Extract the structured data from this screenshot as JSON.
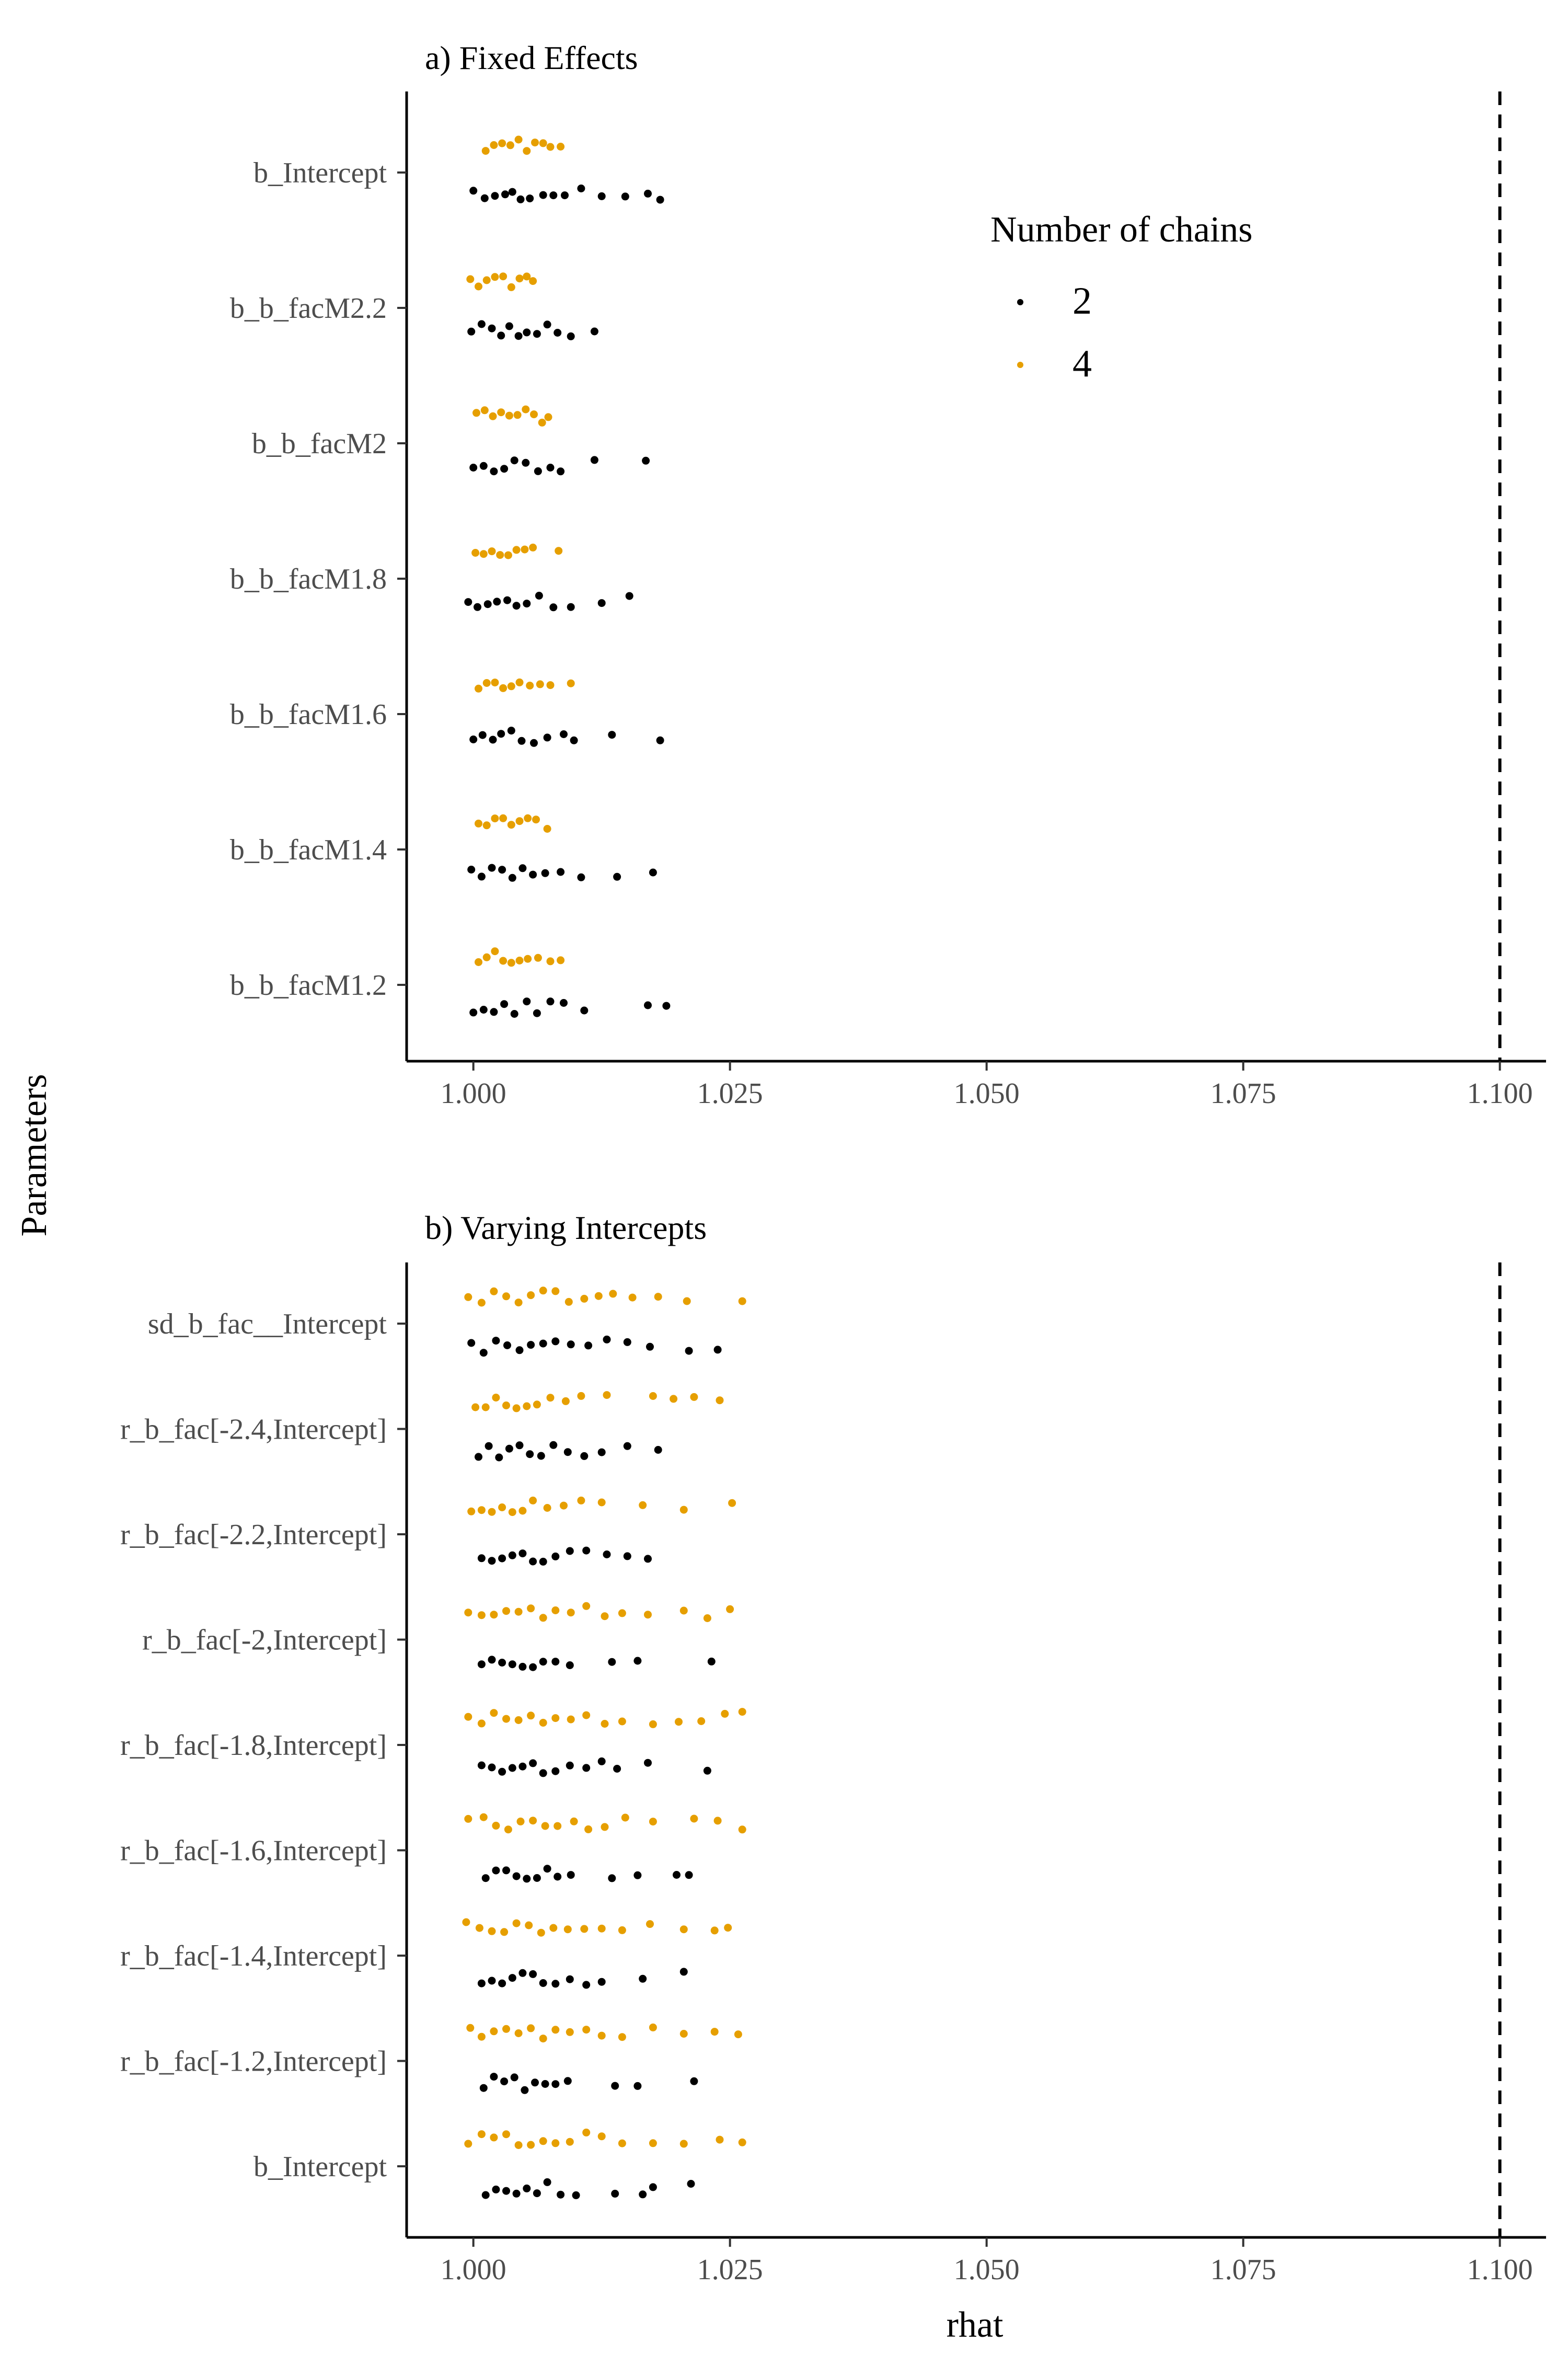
{
  "chart_data": {
    "type": "scatter",
    "xlabel": "rhat",
    "ylabel": "Parameters",
    "xlim": [
      0.9935,
      1.1045
    ],
    "x_ticks": [
      "1.000",
      "1.025",
      "1.050",
      "1.075",
      "1.100"
    ],
    "x_tick_values": [
      1.0,
      1.025,
      1.05,
      1.075,
      1.1
    ],
    "reference_line": {
      "x": 1.1,
      "style": "dashed"
    },
    "grid": false,
    "legend": {
      "title": "Number of chains",
      "placement": "inside top-right of panel a",
      "entries": [
        {
          "label": "2",
          "color": "#000000"
        },
        {
          "label": "4",
          "color": "#E69F00"
        }
      ]
    },
    "panels": [
      {
        "title": "a) Fixed Effects",
        "categories": [
          "b_Intercept",
          "b_b_facM2.2",
          "b_b_facM2",
          "b_b_facM1.8",
          "b_b_facM1.6",
          "b_b_facM1.4",
          "b_b_facM1.2"
        ],
        "series": [
          {
            "name": "2",
            "color": "#000000",
            "values": [
              [
                1.0,
                1.0011,
                1.0021,
                1.0031,
                1.0038,
                1.0046,
                1.0055,
                1.0068,
                1.0078,
                1.0089,
                1.0105,
                1.0125,
                1.0148,
                1.017,
                1.0182
              ],
              [
                0.9998,
                1.0008,
                1.0018,
                1.0027,
                1.0035,
                1.0044,
                1.0052,
                1.0062,
                1.0072,
                1.0082,
                1.0095,
                1.0118
              ],
              [
                1.0,
                1.001,
                1.002,
                1.003,
                1.004,
                1.0051,
                1.0063,
                1.0075,
                1.0085,
                1.0118,
                1.0168
              ],
              [
                0.9995,
                1.0004,
                1.0014,
                1.0023,
                1.0033,
                1.0042,
                1.0052,
                1.0064,
                1.0078,
                1.0095,
                1.0125,
                1.0152
              ],
              [
                1.0,
                1.0009,
                1.0019,
                1.0027,
                1.0037,
                1.0047,
                1.0059,
                1.0072,
                1.0088,
                1.0098,
                1.0135,
                1.0182
              ],
              [
                0.9998,
                1.0008,
                1.0018,
                1.0028,
                1.0038,
                1.0048,
                1.0058,
                1.007,
                1.0085,
                1.0105,
                1.014,
                1.0175
              ],
              [
                1.0,
                1.001,
                1.002,
                1.003,
                1.004,
                1.0052,
                1.0062,
                1.0075,
                1.0088,
                1.0108,
                1.017,
                1.0188
              ]
            ]
          },
          {
            "name": "4",
            "color": "#E69F00",
            "values": [
              [
                1.0012,
                1.002,
                1.0028,
                1.0036,
                1.0044,
                1.0052,
                1.006,
                1.0068,
                1.0075,
                1.0085
              ],
              [
                0.9997,
                1.0005,
                1.0013,
                1.0021,
                1.0029,
                1.0037,
                1.0045,
                1.0052,
                1.0058
              ],
              [
                1.0003,
                1.0011,
                1.0019,
                1.0027,
                1.0035,
                1.0043,
                1.0051,
                1.0059,
                1.0067,
                1.0073
              ],
              [
                1.0002,
                1.001,
                1.0018,
                1.0026,
                1.0034,
                1.0042,
                1.005,
                1.0058,
                1.0083
              ],
              [
                1.0005,
                1.0013,
                1.0021,
                1.0029,
                1.0037,
                1.0045,
                1.0055,
                1.0065,
                1.0075,
                1.0095
              ],
              [
                1.0005,
                1.0013,
                1.0021,
                1.0029,
                1.0037,
                1.0045,
                1.0053,
                1.0061,
                1.0072
              ],
              [
                1.0005,
                1.0013,
                1.0021,
                1.0029,
                1.0037,
                1.0045,
                1.0053,
                1.0063,
                1.0075,
                1.0085
              ]
            ]
          }
        ]
      },
      {
        "title": "b) Varying Intercepts",
        "categories": [
          "sd_b_fac__Intercept",
          "r_b_fac[-2.4,Intercept]",
          "r_b_fac[-2.2,Intercept]",
          "r_b_fac[-2,Intercept]",
          "r_b_fac[-1.8,Intercept]",
          "r_b_fac[-1.6,Intercept]",
          "r_b_fac[-1.4,Intercept]",
          "r_b_fac[-1.2,Intercept]",
          "b_Intercept"
        ],
        "series": [
          {
            "name": "2",
            "color": "#000000",
            "values": [
              [
                0.9998,
                1.001,
                1.0022,
                1.0033,
                1.0045,
                1.0056,
                1.0068,
                1.008,
                1.0095,
                1.0112,
                1.013,
                1.015,
                1.0172,
                1.021,
                1.0238
              ],
              [
                1.0005,
                1.0015,
                1.0025,
                1.0035,
                1.0045,
                1.0055,
                1.0066,
                1.0078,
                1.0092,
                1.0108,
                1.0125,
                1.015,
                1.018
              ],
              [
                1.0008,
                1.0018,
                1.0028,
                1.0038,
                1.0048,
                1.0058,
                1.0068,
                1.008,
                1.0094,
                1.011,
                1.013,
                1.015,
                1.017
              ],
              [
                1.0008,
                1.0018,
                1.0028,
                1.0038,
                1.0048,
                1.0058,
                1.0068,
                1.008,
                1.0094,
                1.0135,
                1.016,
                1.0232
              ],
              [
                1.0008,
                1.0018,
                1.0028,
                1.0038,
                1.0048,
                1.0058,
                1.0068,
                1.008,
                1.0094,
                1.011,
                1.0125,
                1.014,
                1.017,
                1.0228
              ],
              [
                1.0012,
                1.0022,
                1.0032,
                1.0042,
                1.0052,
                1.0062,
                1.0072,
                1.0082,
                1.0095,
                1.0135,
                1.016,
                1.0198,
                1.021
              ],
              [
                1.0008,
                1.0018,
                1.0028,
                1.0038,
                1.0048,
                1.0058,
                1.0068,
                1.008,
                1.0094,
                1.011,
                1.0125,
                1.0165,
                1.0205
              ],
              [
                1.001,
                1.002,
                1.003,
                1.004,
                1.005,
                1.006,
                1.007,
                1.008,
                1.0092,
                1.0138,
                1.016,
                1.0215
              ],
              [
                1.0012,
                1.0022,
                1.0032,
                1.0042,
                1.0052,
                1.0062,
                1.0072,
                1.0085,
                1.01,
                1.0138,
                1.0165,
                1.0175,
                1.0212
              ]
            ]
          },
          {
            "name": "4",
            "color": "#E69F00",
            "values": [
              [
                0.9995,
                1.0008,
                1.002,
                1.0032,
                1.0044,
                1.0056,
                1.0068,
                1.008,
                1.0093,
                1.0108,
                1.0122,
                1.0136,
                1.0155,
                1.018,
                1.0208,
                1.0262
              ],
              [
                1.0002,
                1.0012,
                1.0022,
                1.0032,
                1.0042,
                1.0052,
                1.0062,
                1.0075,
                1.009,
                1.0105,
                1.013,
                1.0175,
                1.0195,
                1.0215,
                1.024
              ],
              [
                0.9998,
                1.0008,
                1.0018,
                1.0028,
                1.0038,
                1.0048,
                1.0058,
                1.0072,
                1.0088,
                1.0105,
                1.0125,
                1.0165,
                1.0205,
                1.0252
              ],
              [
                0.9995,
                1.0008,
                1.002,
                1.0032,
                1.0044,
                1.0056,
                1.0068,
                1.008,
                1.0095,
                1.011,
                1.0128,
                1.0145,
                1.017,
                1.0205,
                1.0228,
                1.025
              ],
              [
                0.9995,
                1.0008,
                1.002,
                1.0032,
                1.0044,
                1.0056,
                1.0068,
                1.008,
                1.0095,
                1.011,
                1.0128,
                1.0145,
                1.0175,
                1.02,
                1.0222,
                1.0245,
                1.0262
              ],
              [
                0.9995,
                1.001,
                1.0022,
                1.0034,
                1.0046,
                1.0058,
                1.007,
                1.0082,
                1.0098,
                1.0112,
                1.0128,
                1.0148,
                1.0175,
                1.0215,
                1.0238,
                1.0262
              ],
              [
                0.9993,
                1.0006,
                1.0018,
                1.003,
                1.0042,
                1.0054,
                1.0066,
                1.0078,
                1.0092,
                1.0108,
                1.0125,
                1.0145,
                1.0172,
                1.0205,
                1.0235,
                1.0248
              ],
              [
                0.9997,
                1.0008,
                1.002,
                1.0032,
                1.0044,
                1.0056,
                1.0068,
                1.008,
                1.0094,
                1.011,
                1.0125,
                1.0145,
                1.0175,
                1.0205,
                1.0235,
                1.0258
              ],
              [
                0.9995,
                1.0008,
                1.002,
                1.0032,
                1.0044,
                1.0056,
                1.0068,
                1.008,
                1.0094,
                1.011,
                1.0125,
                1.0145,
                1.0175,
                1.0205,
                1.024,
                1.0262
              ]
            ]
          }
        ]
      }
    ]
  }
}
